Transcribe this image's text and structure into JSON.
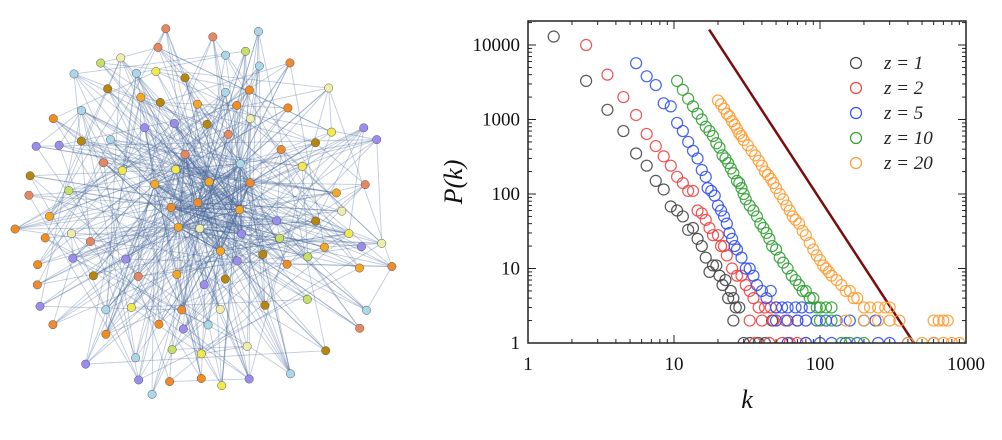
{
  "network": {
    "node_colors": [
      "#f28c1e",
      "#e8875f",
      "#f5a623",
      "#f2e94e",
      "#b8860b",
      "#a8d8ea",
      "#c5e063",
      "#eeeeaa",
      "#9a8cf0",
      "#f08a30"
    ],
    "edge_color": "#4a6a9a"
  },
  "chart_data": {
    "type": "scatter",
    "title": "",
    "xlabel": "k",
    "ylabel": "P(k)",
    "xscale": "log",
    "yscale": "log",
    "xlim": [
      1,
      1000
    ],
    "ylim": [
      1,
      21000
    ],
    "x_ticks": [
      1,
      10,
      100,
      1000
    ],
    "x_tick_labels": [
      "1",
      "10",
      "100",
      "1000"
    ],
    "y_ticks": [
      1,
      10,
      100,
      1000,
      10000
    ],
    "y_tick_labels": [
      "1",
      "10",
      "100",
      "1000",
      "10000"
    ],
    "grid": false,
    "legend_position": "top-right",
    "reference_line": {
      "color": "#7a0c0c",
      "slope": -3,
      "coefficient": 85000000,
      "k_range": [
        17.4,
        440
      ]
    },
    "series": [
      {
        "name": "z = 1",
        "color": "#444444",
        "points": [
          [
            1.5,
            13000
          ],
          [
            2.5,
            3300
          ],
          [
            3.5,
            1350
          ],
          [
            4.5,
            700
          ],
          [
            5.5,
            350
          ],
          [
            6.5,
            240
          ],
          [
            7.5,
            150
          ],
          [
            8.5,
            115
          ],
          [
            9.5,
            68
          ],
          [
            10.5,
            60
          ],
          [
            11.5,
            50
          ],
          [
            12.5,
            33
          ],
          [
            13.5,
            35
          ],
          [
            14.5,
            25
          ],
          [
            15.5,
            20
          ],
          [
            16.5,
            14
          ],
          [
            17.5,
            9
          ],
          [
            18.5,
            11
          ],
          [
            19.5,
            11
          ],
          [
            20.5,
            8
          ],
          [
            21.5,
            6
          ],
          [
            22.5,
            7
          ],
          [
            23.5,
            4
          ],
          [
            24.5,
            5
          ],
          [
            25.5,
            4
          ],
          [
            26.5,
            3
          ],
          [
            28,
            3
          ],
          [
            25.5,
            2
          ],
          [
            47,
            2
          ],
          [
            30,
            1
          ],
          [
            33,
            1
          ],
          [
            38,
            1
          ],
          [
            42,
            1
          ]
        ]
      },
      {
        "name": "z = 2",
        "color": "#f04040",
        "points": [
          [
            2.5,
            10000
          ],
          [
            3.5,
            4000
          ],
          [
            4.5,
            2000
          ],
          [
            5.5,
            1150
          ],
          [
            6.5,
            640
          ],
          [
            7.5,
            440
          ],
          [
            8.5,
            320
          ],
          [
            9.5,
            240
          ],
          [
            10.5,
            170
          ],
          [
            11.5,
            140
          ],
          [
            12.5,
            110
          ],
          [
            13.5,
            110
          ],
          [
            14.5,
            60
          ],
          [
            15.5,
            55
          ],
          [
            16.5,
            45
          ],
          [
            17.5,
            35
          ],
          [
            18.5,
            28
          ],
          [
            20,
            28
          ],
          [
            21,
            20
          ],
          [
            22,
            20
          ],
          [
            23,
            15
          ],
          [
            25,
            10
          ],
          [
            27,
            8
          ],
          [
            29,
            8
          ],
          [
            31,
            6
          ],
          [
            33,
            5
          ],
          [
            35,
            4
          ],
          [
            38,
            3
          ],
          [
            42,
            3
          ],
          [
            46,
            3
          ],
          [
            50,
            3
          ],
          [
            33,
            2
          ],
          [
            40,
            2
          ],
          [
            48,
            2
          ],
          [
            58,
            2
          ],
          [
            70,
            2
          ],
          [
            36,
            1
          ],
          [
            45,
            1
          ],
          [
            55,
            1
          ],
          [
            62,
            1
          ],
          [
            70,
            1
          ],
          [
            80,
            1
          ]
        ]
      },
      {
        "name": "z = 5",
        "color": "#3050f0",
        "points": [
          [
            5.5,
            5700
          ],
          [
            6.5,
            3800
          ],
          [
            7.5,
            2900
          ],
          [
            8.5,
            1650
          ],
          [
            9.5,
            1500
          ],
          [
            10.5,
            900
          ],
          [
            11.5,
            700
          ],
          [
            12.5,
            500
          ],
          [
            13.5,
            380
          ],
          [
            14.5,
            300
          ],
          [
            15.5,
            210
          ],
          [
            16.5,
            170
          ],
          [
            17,
            120
          ],
          [
            18,
            110
          ],
          [
            19,
            95
          ],
          [
            20,
            70
          ],
          [
            21,
            60
          ],
          [
            22,
            50
          ],
          [
            23,
            40
          ],
          [
            24,
            30
          ],
          [
            25,
            25
          ],
          [
            26,
            20
          ],
          [
            27,
            18
          ],
          [
            29,
            14
          ],
          [
            31,
            10
          ],
          [
            33,
            10
          ],
          [
            35,
            8
          ],
          [
            37,
            6
          ],
          [
            40,
            5
          ],
          [
            43,
            4
          ],
          [
            46,
            5
          ],
          [
            50,
            3
          ],
          [
            55,
            3
          ],
          [
            60,
            3
          ],
          [
            68,
            3
          ],
          [
            75,
            3
          ],
          [
            85,
            3
          ],
          [
            50,
            2
          ],
          [
            60,
            2
          ],
          [
            70,
            2
          ],
          [
            80,
            2
          ],
          [
            95,
            2
          ],
          [
            110,
            2
          ],
          [
            130,
            2
          ],
          [
            160,
            2
          ],
          [
            200,
            2
          ],
          [
            240,
            2
          ],
          [
            60,
            1
          ],
          [
            80,
            1
          ],
          [
            100,
            1
          ],
          [
            120,
            1
          ],
          [
            150,
            1
          ],
          [
            180,
            1
          ],
          [
            250,
            1
          ],
          [
            300,
            1
          ],
          [
            400,
            1
          ],
          [
            600,
            1
          ]
        ]
      },
      {
        "name": "z = 10",
        "color": "#30a030",
        "points": [
          [
            10.5,
            3300
          ],
          [
            11.5,
            2500
          ],
          [
            12.5,
            1900
          ],
          [
            13.5,
            1500
          ],
          [
            14.5,
            1200
          ],
          [
            15.5,
            1000
          ],
          [
            16.5,
            800
          ],
          [
            17.5,
            700
          ],
          [
            18.5,
            600
          ],
          [
            19.5,
            480
          ],
          [
            20.5,
            420
          ],
          [
            21.5,
            330
          ],
          [
            22.5,
            300
          ],
          [
            23.5,
            260
          ],
          [
            24.5,
            220
          ],
          [
            25.5,
            190
          ],
          [
            27,
            150
          ],
          [
            28,
            140
          ],
          [
            29,
            120
          ],
          [
            30,
            100
          ],
          [
            31,
            85
          ],
          [
            33,
            70
          ],
          [
            35,
            60
          ],
          [
            37,
            50
          ],
          [
            39,
            40
          ],
          [
            41,
            35
          ],
          [
            43,
            30
          ],
          [
            45,
            25
          ],
          [
            47,
            20
          ],
          [
            50,
            18
          ],
          [
            53,
            14
          ],
          [
            56,
            12
          ],
          [
            60,
            10
          ],
          [
            64,
            8
          ],
          [
            68,
            7
          ],
          [
            72,
            6
          ],
          [
            76,
            5
          ],
          [
            80,
            5
          ],
          [
            85,
            4
          ],
          [
            90,
            4
          ],
          [
            95,
            3
          ],
          [
            100,
            3
          ],
          [
            110,
            3
          ],
          [
            120,
            3
          ],
          [
            100,
            2
          ],
          [
            120,
            2
          ],
          [
            140,
            1
          ],
          [
            160,
            1
          ],
          [
            200,
            1
          ]
        ]
      },
      {
        "name": "z = 20",
        "color": "#ff9a30",
        "points": [
          [
            20,
            1800
          ],
          [
            21,
            1600
          ],
          [
            22,
            1400
          ],
          [
            23,
            1200
          ],
          [
            24,
            1100
          ],
          [
            25,
            950
          ],
          [
            26,
            850
          ],
          [
            27,
            750
          ],
          [
            28,
            650
          ],
          [
            29,
            600
          ],
          [
            30,
            530
          ],
          [
            32,
            450
          ],
          [
            34,
            380
          ],
          [
            36,
            330
          ],
          [
            38,
            280
          ],
          [
            40,
            240
          ],
          [
            42,
            200
          ],
          [
            44,
            180
          ],
          [
            46,
            160
          ],
          [
            48,
            140
          ],
          [
            50,
            120
          ],
          [
            53,
            100
          ],
          [
            56,
            85
          ],
          [
            59,
            70
          ],
          [
            62,
            60
          ],
          [
            65,
            50
          ],
          [
            68,
            45
          ],
          [
            72,
            40
          ],
          [
            76,
            32
          ],
          [
            80,
            28
          ],
          [
            85,
            22
          ],
          [
            90,
            18
          ],
          [
            95,
            15
          ],
          [
            100,
            13
          ],
          [
            105,
            11
          ],
          [
            110,
            10
          ],
          [
            115,
            9
          ],
          [
            120,
            8
          ],
          [
            130,
            7
          ],
          [
            140,
            6
          ],
          [
            150,
            5
          ],
          [
            160,
            5
          ],
          [
            170,
            4
          ],
          [
            180,
            4
          ],
          [
            200,
            3
          ],
          [
            220,
            3
          ],
          [
            250,
            3
          ],
          [
            280,
            3
          ],
          [
            300,
            3
          ],
          [
            150,
            2
          ],
          [
            200,
            2
          ],
          [
            250,
            2
          ],
          [
            300,
            2
          ],
          [
            350,
            2
          ],
          [
            600,
            2
          ],
          [
            650,
            2
          ],
          [
            700,
            2
          ],
          [
            750,
            2
          ],
          [
            400,
            1
          ],
          [
            500,
            1
          ],
          [
            600,
            1
          ],
          [
            700,
            1
          ],
          [
            800,
            1
          ],
          [
            900,
            1
          ]
        ]
      }
    ]
  }
}
